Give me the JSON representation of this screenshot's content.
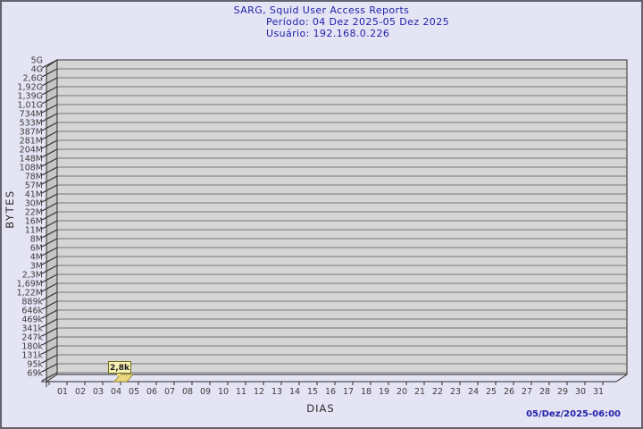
{
  "header": {
    "title": "SARG, Squid User Access Reports",
    "period": "Período: 04 Dez 2025-05 Dez 2025",
    "user": "Usuário: 192.168.0.226"
  },
  "footer": {
    "timestamp": "05/Dez/2025-06:00"
  },
  "colors": {
    "background": "#e4e4f4",
    "frame_border": "#63636e",
    "title_navy": "#2222aa",
    "plot_face": "#d5d5d5",
    "plot_wall": "#c6c6c6",
    "gridline": "#757575",
    "axis_edge": "#2b2b2b",
    "tick_text": "#3e3e3e",
    "marker_fill": "#ecd77e",
    "marker_edge": "#8f7f1f",
    "value_box_fill": "#f8efb5",
    "value_box_edge": "#6d6d16",
    "value_text": "#1a1a1a"
  },
  "chart_data": {
    "type": "area",
    "title": "SARG, Squid User Access Reports",
    "subtitle": [
      "Período: 04 Dez 2025-05 Dez 2025",
      "Usuário: 192.168.0.226"
    ],
    "xlabel": "DIAS",
    "ylabel": "BYTES",
    "legend_position": "none",
    "grid": "horizontal",
    "y_scale": "logarithmic-irregular",
    "ylim_labels": [
      "69k",
      "5G"
    ],
    "x_categories": [
      "01",
      "02",
      "03",
      "04",
      "05",
      "06",
      "07",
      "08",
      "09",
      "10",
      "11",
      "12",
      "13",
      "14",
      "15",
      "16",
      "17",
      "18",
      "19",
      "20",
      "21",
      "22",
      "23",
      "24",
      "25",
      "26",
      "27",
      "28",
      "29",
      "30",
      "31"
    ],
    "y_tick_labels": [
      "5G",
      "4G",
      "2,6G",
      "1,92G",
      "1,39G",
      "1,01G",
      "734M",
      "533M",
      "387M",
      "281M",
      "204M",
      "148M",
      "108M",
      "78M",
      "57M",
      "41M",
      "30M",
      "22M",
      "16M",
      "11M",
      "8M",
      "6M",
      "4M",
      "3M",
      "2,3M",
      "1,69M",
      "1,22M",
      "889k",
      "646k",
      "469k",
      "341k",
      "247k",
      "180k",
      "131k",
      "95k",
      "69k"
    ],
    "series": [
      {
        "name": "BYTES",
        "values": [
          0,
          0,
          0,
          2800,
          0,
          0,
          0,
          0,
          0,
          0,
          0,
          0,
          0,
          0,
          0,
          0,
          0,
          0,
          0,
          0,
          0,
          0,
          0,
          0,
          0,
          0,
          0,
          0,
          0,
          0,
          0
        ]
      }
    ],
    "annotations": [
      {
        "x": "04",
        "label": "2,8k",
        "value": 2800
      }
    ]
  }
}
